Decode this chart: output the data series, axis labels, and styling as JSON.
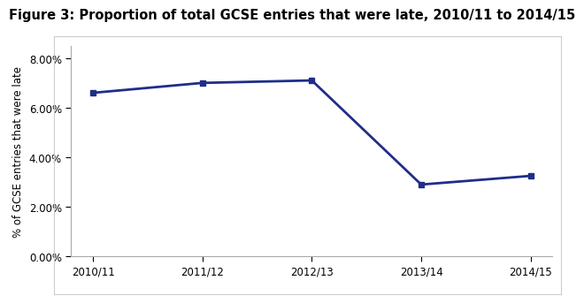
{
  "title": "Figure 3: Proportion of total GCSE entries that were late, 2010/11 to 2014/15",
  "ylabel": "% of GCSE entries that were late",
  "categories": [
    "2010/11",
    "2011/12",
    "2012/13",
    "2013/14",
    "2014/15"
  ],
  "values": [
    0.066,
    0.07,
    0.071,
    0.029,
    0.0325
  ],
  "line_color": "#1f2d8a",
  "marker": "s",
  "marker_size": 4,
  "ylim": [
    0.0,
    0.085
  ],
  "yticks": [
    0.0,
    0.02,
    0.04,
    0.06,
    0.08
  ],
  "background_color": "#ffffff",
  "title_fontsize": 10.5,
  "ylabel_fontsize": 8.5,
  "tick_fontsize": 8.5,
  "line_width": 2.0,
  "spine_color": "#aaaaaa",
  "box_color": "#cccccc"
}
